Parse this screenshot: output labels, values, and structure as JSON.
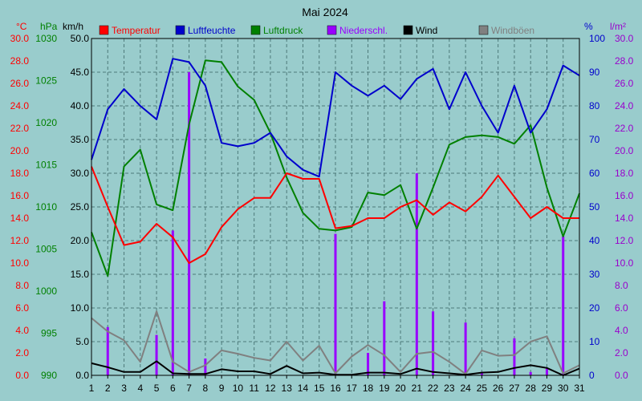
{
  "chart_data": {
    "type": "line",
    "title": "Mai 2024",
    "x": [
      1,
      2,
      3,
      4,
      5,
      6,
      7,
      8,
      9,
      10,
      11,
      12,
      13,
      14,
      15,
      16,
      17,
      18,
      19,
      20,
      21,
      22,
      23,
      24,
      25,
      26,
      27,
      28,
      29,
      30,
      31
    ],
    "axes": {
      "temperature": {
        "unit": "°C",
        "range": [
          0,
          30
        ],
        "ticks": [
          "0.0",
          "2.0",
          "4.0",
          "6.0",
          "8.0",
          "10.0",
          "12.0",
          "14.0",
          "16.0",
          "18.0",
          "20.0",
          "22.0",
          "24.0",
          "26.0",
          "28.0",
          "30.0"
        ]
      },
      "pressure": {
        "unit": "hPa",
        "range": [
          990,
          1030
        ],
        "ticks": [
          "990",
          "995",
          "1000",
          "1005",
          "1010",
          "1015",
          "1020",
          "1025",
          "1030"
        ]
      },
      "wind": {
        "unit": "km/h",
        "range": [
          0,
          50
        ],
        "ticks": [
          "0.0",
          "5.0",
          "10.0",
          "15.0",
          "20.0",
          "25.0",
          "30.0",
          "35.0",
          "40.0",
          "45.0",
          "50.0"
        ]
      },
      "humidity": {
        "unit": "%",
        "range": [
          0,
          100
        ],
        "ticks": [
          "0",
          "10",
          "20",
          "30",
          "40",
          "50",
          "60",
          "70",
          "80",
          "90",
          "100"
        ]
      },
      "precipitation": {
        "unit": "l/m²",
        "range": [
          0,
          30
        ],
        "ticks": [
          "0.0",
          "2.0",
          "4.0",
          "6.0",
          "8.0",
          "10.0",
          "12.0",
          "14.0",
          "16.0",
          "18.0",
          "20.0",
          "22.0",
          "24.0",
          "26.0",
          "28.0",
          "30.0"
        ]
      }
    },
    "series": [
      {
        "name": "Temperatur",
        "axis": "temperature",
        "style": "line",
        "color": "#ff0000",
        "values": [
          18.6,
          15.0,
          11.6,
          11.9,
          13.5,
          12.3,
          10.0,
          10.8,
          13.2,
          14.8,
          15.8,
          15.8,
          18.0,
          17.5,
          17.5,
          13.1,
          13.3,
          14.0,
          14.0,
          15.0,
          15.6,
          14.3,
          15.4,
          14.6,
          15.9,
          17.8,
          15.9,
          14.0,
          15.0,
          14.0,
          14.0
        ]
      },
      {
        "name": "Luftfeuchte",
        "axis": "humidity",
        "style": "line",
        "color": "#0000cc",
        "values": [
          64,
          79,
          85,
          80,
          76,
          94,
          93,
          86,
          69,
          68,
          69,
          72,
          65,
          61,
          59,
          90,
          86,
          83,
          86,
          82,
          88,
          91,
          79,
          90,
          80,
          72,
          86,
          72,
          79,
          92,
          89
        ]
      },
      {
        "name": "Luftdruck",
        "axis": "pressure",
        "style": "line",
        "color": "#008000",
        "values": [
          1007.0,
          1001.8,
          1014.8,
          1016.8,
          1010.3,
          1009.6,
          1019.8,
          1027.4,
          1027.2,
          1024.3,
          1022.7,
          1018.8,
          1013.5,
          1009.3,
          1007.4,
          1007.2,
          1007.6,
          1011.7,
          1011.4,
          1012.6,
          1007.4,
          1012.3,
          1017.4,
          1018.3,
          1018.5,
          1018.3,
          1017.5,
          1019.7,
          1012.3,
          1006.5,
          1011.6
        ]
      },
      {
        "name": "Niederschl.",
        "axis": "precipitation",
        "style": "bar",
        "color": "#9900ff",
        "values": [
          0,
          4.3,
          0,
          0,
          3.6,
          12.9,
          27.0,
          1.5,
          0,
          0,
          0,
          0,
          0,
          0,
          0,
          12.6,
          0,
          2.0,
          6.6,
          0,
          18.0,
          5.7,
          0,
          4.7,
          0.3,
          0,
          3.3,
          0.3,
          0.6,
          12.4,
          0
        ]
      },
      {
        "name": "Wind",
        "axis": "wind",
        "style": "line",
        "color": "#000000",
        "values": [
          1.8,
          1.2,
          0.5,
          0.5,
          2.1,
          0.3,
          0.2,
          0.2,
          0.9,
          0.6,
          0.6,
          0.2,
          1.4,
          0.3,
          0.4,
          0.1,
          0.1,
          0.4,
          0.4,
          0.2,
          1.0,
          0.5,
          0.3,
          0.1,
          0.4,
          0.5,
          1.1,
          1.5,
          1.1,
          0.0,
          1.0
        ]
      },
      {
        "name": "Windböen",
        "axis": "wind",
        "style": "line",
        "color": "#808080",
        "values": [
          8.5,
          6.5,
          5.2,
          2.0,
          9.5,
          2.0,
          0.5,
          1.5,
          3.7,
          3.2,
          2.6,
          2.2,
          5.0,
          2.2,
          4.4,
          0.3,
          2.8,
          4.5,
          3.0,
          0.5,
          3.2,
          3.5,
          2.0,
          0.2,
          3.7,
          2.9,
          3.0,
          5.0,
          5.8,
          0.3,
          1.5
        ]
      }
    ],
    "legend": {
      "placement": "top",
      "orientation": "horizontal"
    },
    "grid": true
  }
}
